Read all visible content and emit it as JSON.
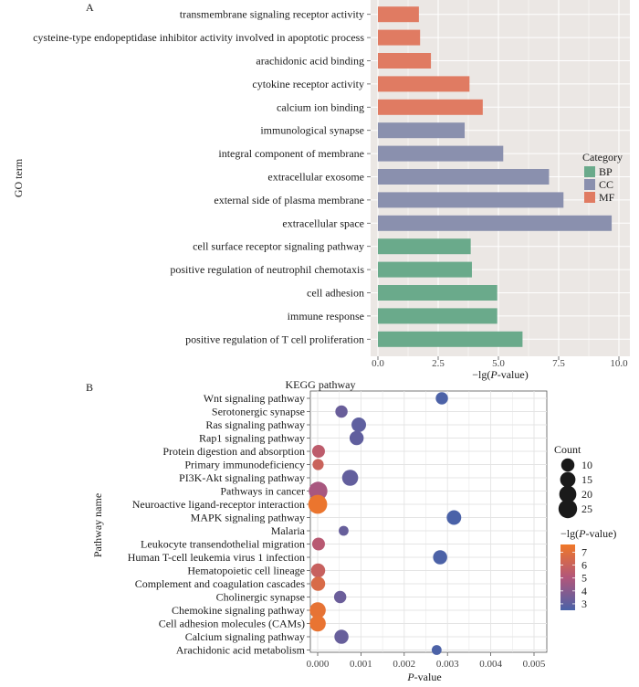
{
  "chart_data": [
    {
      "panel_label": "A",
      "type": "bar",
      "orientation": "horizontal",
      "ylabel": "GO term",
      "xlabel_parts": [
        "−lg(",
        "P",
        "-value)"
      ],
      "xlim": [
        0,
        10
      ],
      "xticks": [
        "0.0",
        "2.5",
        "5.0",
        "7.5",
        "10.0"
      ],
      "xtick_values": [
        0,
        2.5,
        5,
        7.5,
        10
      ],
      "legend": {
        "title": "Category",
        "placement": "right",
        "entries": [
          {
            "name": "BP",
            "color": "#6aaa8b"
          },
          {
            "name": "CC",
            "color": "#8a90ae"
          },
          {
            "name": "MF",
            "color": "#e07b62"
          }
        ]
      },
      "bars": [
        {
          "term": "transmembrane signaling receptor activity",
          "value": 1.7,
          "category": "MF"
        },
        {
          "term": "cysteine-type endopeptidase inhibitor activity involved in apoptotic process",
          "value": 1.75,
          "category": "MF"
        },
        {
          "term": "arachidonic acid binding",
          "value": 2.2,
          "category": "MF"
        },
        {
          "term": "cytokine receptor activity",
          "value": 3.8,
          "category": "MF"
        },
        {
          "term": "calcium ion binding",
          "value": 4.35,
          "category": "MF"
        },
        {
          "term": "immunological synapse",
          "value": 3.6,
          "category": "CC"
        },
        {
          "term": "integral component of membrane",
          "value": 5.2,
          "category": "CC"
        },
        {
          "term": "extracellular exosome",
          "value": 7.1,
          "category": "CC"
        },
        {
          "term": "external side of plasma membrane",
          "value": 7.7,
          "category": "CC"
        },
        {
          "term": "extracellular space",
          "value": 9.7,
          "category": "CC"
        },
        {
          "term": "cell surface receptor signaling pathway",
          "value": 3.85,
          "category": "BP"
        },
        {
          "term": "positive regulation of neutrophil chemotaxis",
          "value": 3.9,
          "category": "BP"
        },
        {
          "term": "cell adhesion",
          "value": 4.95,
          "category": "BP"
        },
        {
          "term": "immune response",
          "value": 4.95,
          "category": "BP"
        },
        {
          "term": "positive regulation of T cell proliferation",
          "value": 6.0,
          "category": "BP"
        }
      ]
    },
    {
      "panel_label": "B",
      "type": "scatter",
      "title": "KEGG pathway",
      "ylabel": "Pathway name",
      "xlabel_parts": [
        "",
        "P",
        "-value"
      ],
      "xlim": [
        -0.0002,
        0.0052
      ],
      "xticks": [
        "0.000",
        "0.001",
        "0.002",
        "0.003",
        "0.004",
        "0.005"
      ],
      "xtick_values": [
        0,
        0.001,
        0.002,
        0.003,
        0.004,
        0.005
      ],
      "size_legend": {
        "title": "Count",
        "values": [
          10,
          15,
          20,
          25
        ]
      },
      "color_legend": {
        "title_parts": [
          "−lg(",
          "P",
          "-value)"
        ],
        "min": 2.5,
        "max": 7.6,
        "ticks": [
          "3",
          "4",
          "5",
          "6",
          "7"
        ],
        "tick_values": [
          3,
          4,
          5,
          6,
          7
        ],
        "low_color": "#4a62a8",
        "mid_color": "#b2567a",
        "high_color": "#f07828"
      },
      "points": [
        {
          "pathway": "Wnt signaling pathway",
          "p": 0.00287,
          "count": 8,
          "lg": 2.54
        },
        {
          "pathway": "Serotonergic synapse",
          "p": 0.00055,
          "count": 8,
          "lg": 3.26
        },
        {
          "pathway": "Ras signaling pathway",
          "p": 0.00095,
          "count": 13,
          "lg": 3.02
        },
        {
          "pathway": "Rap1 signaling pathway",
          "p": 0.0009,
          "count": 12,
          "lg": 3.05
        },
        {
          "pathway": "Protein digestion and absorption",
          "p": 2e-05,
          "count": 9,
          "lg": 5.5
        },
        {
          "pathway": "Primary immunodeficiency",
          "p": 1e-05,
          "count": 6,
          "lg": 6.0
        },
        {
          "pathway": "PI3K-Akt signaling pathway",
          "p": 0.00075,
          "count": 17,
          "lg": 3.12
        },
        {
          "pathway": "Pathways in cancer",
          "p": 1e-05,
          "count": 25,
          "lg": 4.8
        },
        {
          "pathway": "Neuroactive ligand-receptor interaction",
          "p": 1e-06,
          "count": 26,
          "lg": 7.4
        },
        {
          "pathway": "MAPK signaling pathway",
          "p": 0.00315,
          "count": 13,
          "lg": 2.5
        },
        {
          "pathway": "Malaria",
          "p": 0.0006,
          "count": 4,
          "lg": 3.2
        },
        {
          "pathway": "Leukocyte transendothelial migration",
          "p": 2e-05,
          "count": 9,
          "lg": 5.3
        },
        {
          "pathway": "Human T-cell leukemia virus 1 infection",
          "p": 0.00283,
          "count": 12,
          "lg": 2.55
        },
        {
          "pathway": "Hematopoietic cell lineage",
          "p": 1e-05,
          "count": 12,
          "lg": 5.9
        },
        {
          "pathway": "Complement and coagulation cascades",
          "p": 1e-05,
          "count": 12,
          "lg": 6.6
        },
        {
          "pathway": "Cholinergic synapse",
          "p": 0.00052,
          "count": 8,
          "lg": 3.3
        },
        {
          "pathway": "Chemokine signaling pathway",
          "p": 1e-06,
          "count": 17,
          "lg": 7.2
        },
        {
          "pathway": "Cell adhesion molecules (CAMs)",
          "p": 1e-06,
          "count": 17,
          "lg": 7.3
        },
        {
          "pathway": "Calcium signaling pathway",
          "p": 0.00055,
          "count": 12,
          "lg": 3.2
        },
        {
          "pathway": "Arachidonic acid metabolism",
          "p": 0.00275,
          "count": 4,
          "lg": 2.56
        }
      ]
    }
  ]
}
